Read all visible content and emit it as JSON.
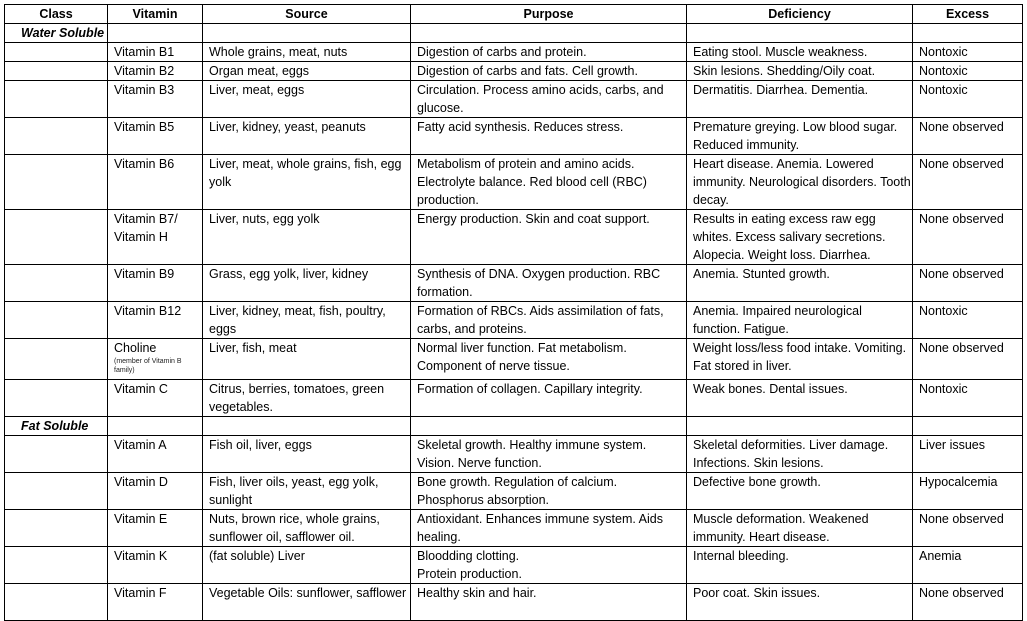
{
  "headers": [
    "Class",
    "Vitamin",
    "Source",
    "Purpose",
    "Deficiency",
    "Excess"
  ],
  "rows": [
    {
      "class": "Water Soluble",
      "vitamin": "",
      "note": "",
      "source": "",
      "purpose": "",
      "deficiency": "",
      "excess": ""
    },
    {
      "class": "",
      "vitamin": "Vitamin B1",
      "note": "",
      "source": "Whole grains, meat, nuts",
      "purpose": "Digestion of carbs and protein.",
      "deficiency": "Eating stool. Muscle weakness.",
      "excess": "Nontoxic"
    },
    {
      "class": "",
      "vitamin": "Vitamin B2",
      "note": "",
      "source": "Organ meat, eggs",
      "purpose": "Digestion of carbs and fats. Cell growth.",
      "deficiency": "Skin lesions. Shedding/Oily coat.",
      "excess": "Nontoxic"
    },
    {
      "class": "",
      "vitamin": "Vitamin B3",
      "note": "",
      "source": "Liver, meat, eggs",
      "purpose": "Circulation. Process amino acids, carbs, and glucose.",
      "deficiency": "Dermatitis. Diarrhea. Dementia.",
      "excess": "Nontoxic"
    },
    {
      "class": "",
      "vitamin": "Vitamin B5",
      "note": "",
      "source": "Liver, kidney, yeast, peanuts",
      "purpose": "Fatty acid synthesis. Reduces stress.",
      "deficiency": "Premature greying. Low blood sugar. Reduced immunity.",
      "excess": "None observed"
    },
    {
      "class": "",
      "vitamin": "Vitamin B6",
      "note": "",
      "source": "Liver, meat, whole grains, fish, egg yolk",
      "purpose": "Metabolism of protein and amino acids. Electrolyte balance. Red blood cell (RBC) production.",
      "deficiency": "Heart disease. Anemia. Lowered immunity. Neurological disorders. Tooth decay.",
      "excess": "None observed"
    },
    {
      "class": "",
      "vitamin": "Vitamin B7/ Vitamin H",
      "note": "",
      "source": "Liver, nuts, egg yolk",
      "purpose": "Energy production. Skin and coat support.",
      "deficiency": "Results in eating excess raw egg whites. Excess salivary secretions. Alopecia. Weight loss. Diarrhea.",
      "excess": "None observed"
    },
    {
      "class": "",
      "vitamin": "Vitamin B9",
      "note": "",
      "source": "Grass, egg yolk, liver, kidney",
      "purpose": "Synthesis of DNA. Oxygen production. RBC formation.",
      "deficiency": "Anemia. Stunted growth.",
      "excess": "None observed"
    },
    {
      "class": "",
      "vitamin": "Vitamin B12",
      "note": "",
      "source": "Liver, kidney, meat, fish, poultry, eggs",
      "purpose": "Formation of RBCs. Aids assimilation of fats, carbs, and proteins.",
      "deficiency": "Anemia. Impaired neurological function. Fatigue.",
      "excess": "Nontoxic"
    },
    {
      "class": "",
      "vitamin": "Choline",
      "note": "(member of Vitamin B family)",
      "source": "Liver, fish, meat",
      "purpose": "Normal liver function. Fat metabolism. Component of nerve tissue.",
      "deficiency": "Weight loss/less food intake. Vomiting. Fat stored in liver.",
      "excess": "None observed"
    },
    {
      "class": "",
      "vitamin": "Vitamin C",
      "note": "",
      "source": "Citrus, berries, tomatoes, green vegetables.",
      "purpose": "Formation of collagen. Capillary integrity.",
      "deficiency": "Weak bones. Dental issues.",
      "excess": "Nontoxic"
    },
    {
      "class": "Fat Soluble",
      "vitamin": "",
      "note": "",
      "source": "",
      "purpose": "",
      "deficiency": "",
      "excess": ""
    },
    {
      "class": "",
      "vitamin": "Vitamin A",
      "note": "",
      "source": "Fish oil, liver, eggs",
      "purpose": "Skeletal growth. Healthy immune system. Vision. Nerve function.",
      "deficiency": "Skeletal deformities. Liver damage. Infections. Skin lesions.",
      "excess": "Liver issues"
    },
    {
      "class": "",
      "vitamin": "Vitamin D",
      "note": "",
      "source": "Fish, liver oils, yeast, egg yolk, sunlight",
      "purpose": "Bone growth. Regulation of calcium. Phosphorus absorption.",
      "deficiency": "Defective bone growth.",
      "excess": "Hypocalcemia"
    },
    {
      "class": "",
      "vitamin": "Vitamin E",
      "note": "",
      "source": "Nuts, brown rice, whole grains, sunflower oil, safflower oil.",
      "purpose": "Antioxidant. Enhances immune system. Aids healing.",
      "deficiency": "Muscle deformation. Weakened immunity. Heart disease.",
      "excess": "None observed"
    },
    {
      "class": "",
      "vitamin": "Vitamin K",
      "note": "",
      "source": "(fat soluble) Liver",
      "purpose": "Bloodding clotting.\nProtein production.",
      "deficiency": "Internal bleeding.",
      "excess": "Anemia"
    },
    {
      "class": "",
      "vitamin": "Vitamin F",
      "note": "",
      "source": "Vegetable Oils: sunflower, safflower",
      "purpose": "Healthy skin and hair.",
      "deficiency": "Poor coat. Skin issues.",
      "excess": "None observed"
    }
  ]
}
